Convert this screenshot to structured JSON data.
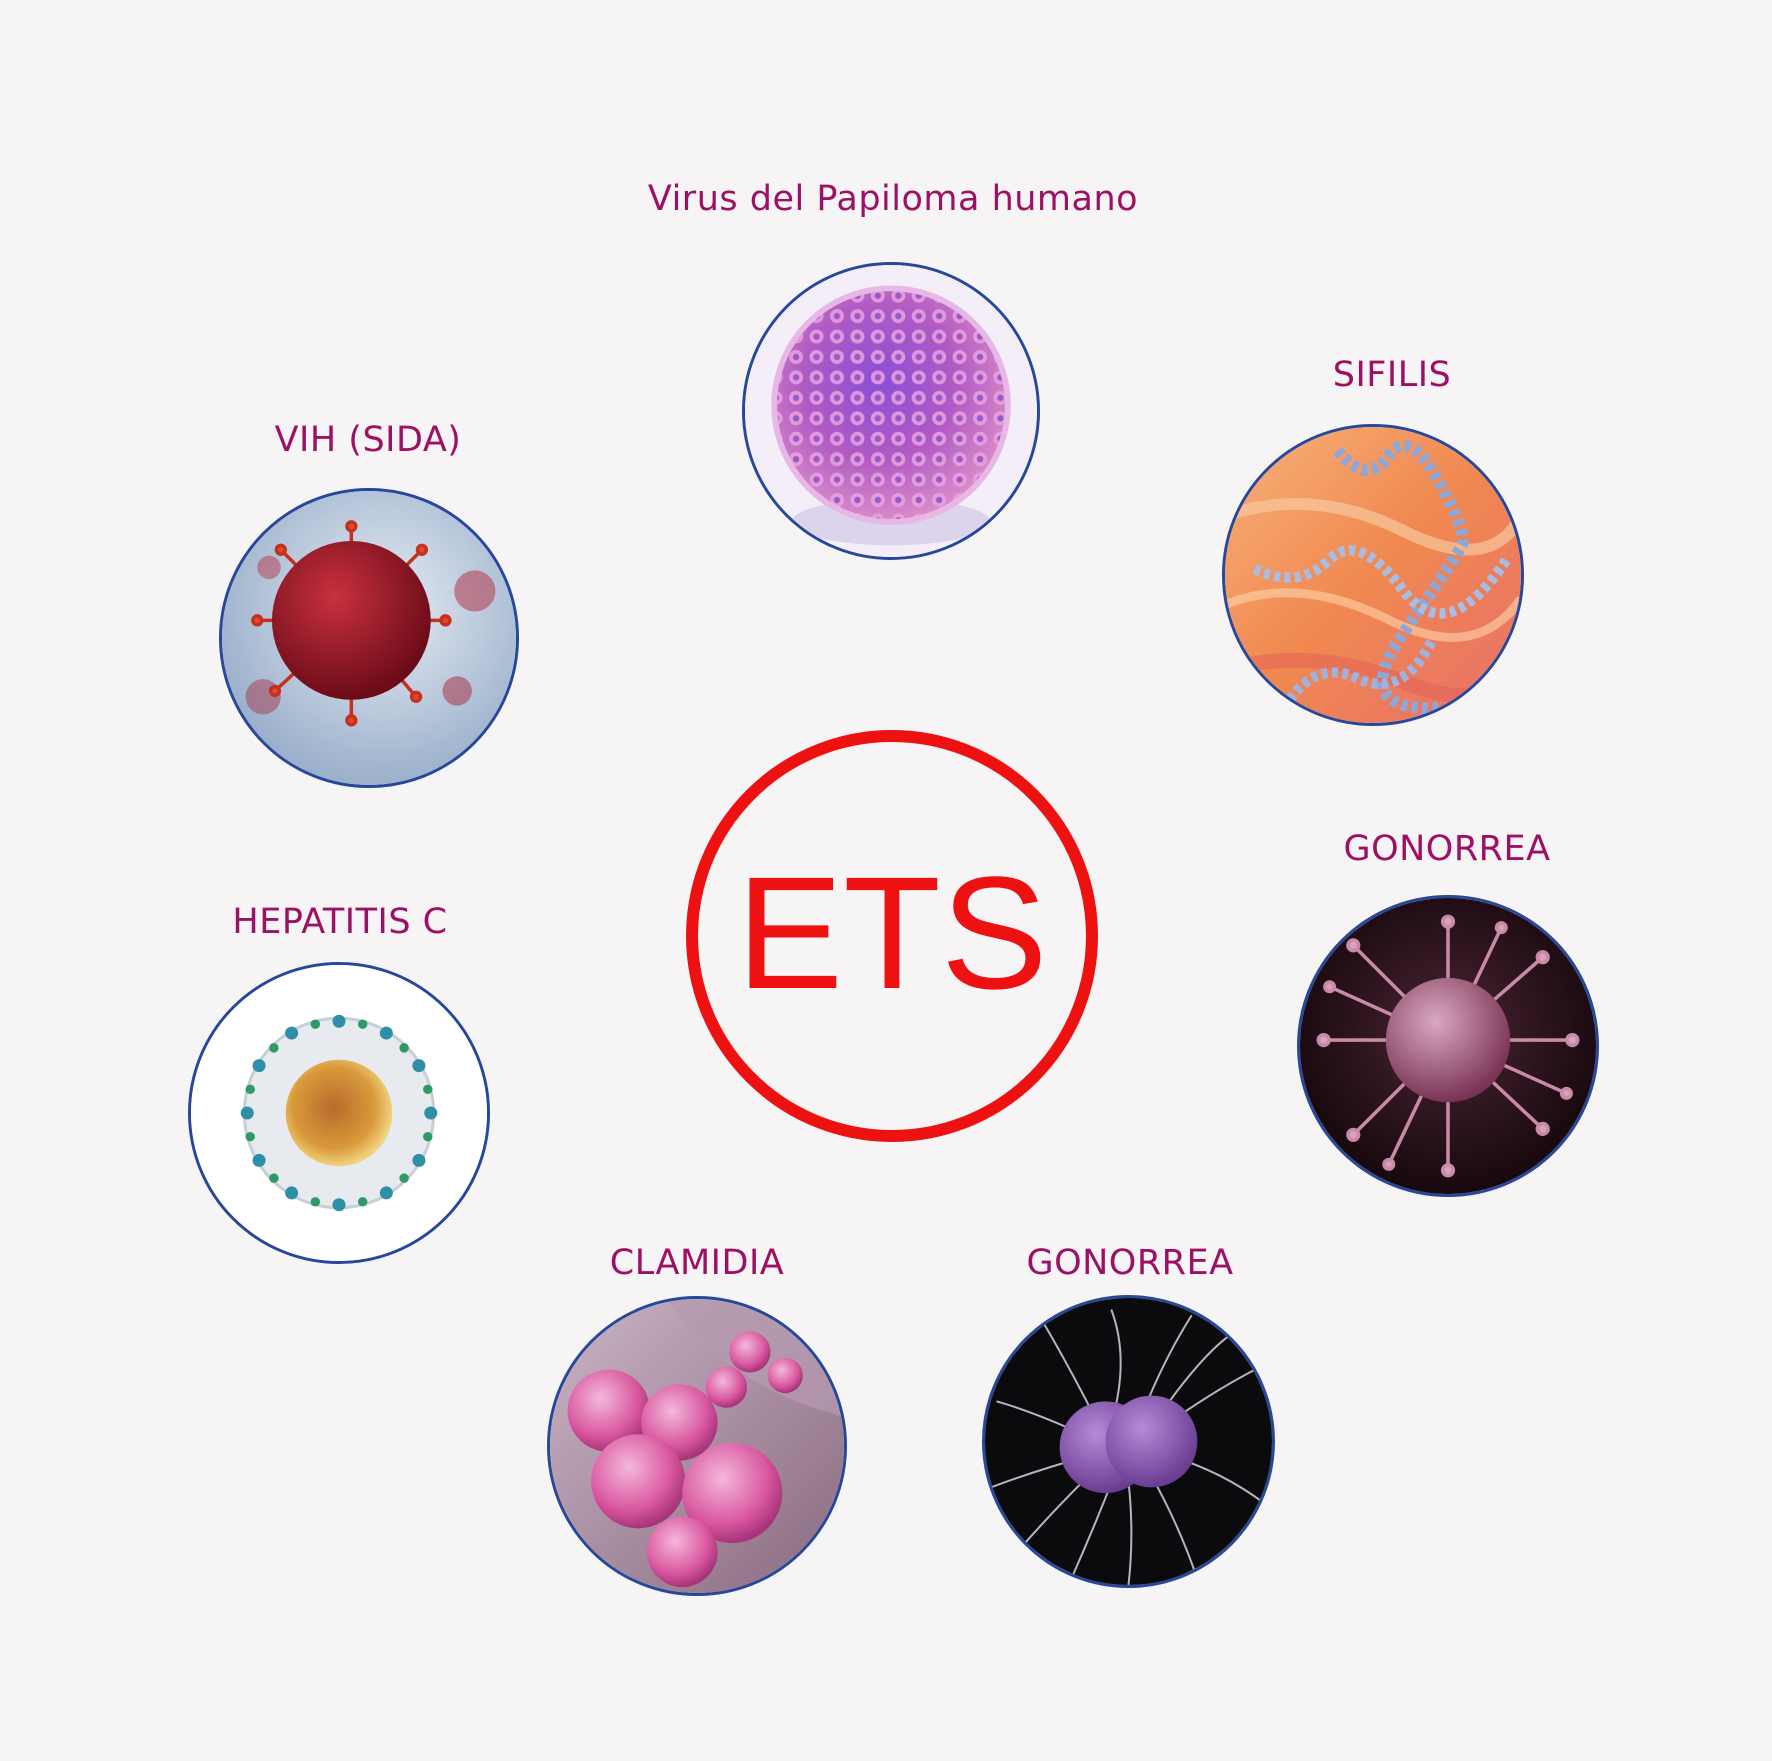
{
  "center": {
    "label": "ETS",
    "color": "#ee1111"
  },
  "colors": {
    "label": "#9c1163",
    "ring": "#27489a",
    "background": "#f7f4f5"
  },
  "nodes": [
    {
      "id": "vph",
      "label": "Virus del Papiloma humano",
      "icon": "papilloma-virus-image"
    },
    {
      "id": "sifilis",
      "label": "SIFILIS",
      "icon": "spirochete-image"
    },
    {
      "id": "gonorrea-1",
      "label": "GONORREA",
      "icon": "spiky-virus-image"
    },
    {
      "id": "gonorrea-2",
      "label": "GONORREA",
      "icon": "diplococcus-image"
    },
    {
      "id": "clamidia",
      "label": "CLAMIDIA",
      "icon": "chlamydia-cells-image"
    },
    {
      "id": "hepatitis",
      "label": "HEPATITIS C",
      "icon": "hepatitis-virus-image"
    },
    {
      "id": "vih",
      "label": "VIH (SIDA)",
      "icon": "hiv-virus-image"
    }
  ]
}
